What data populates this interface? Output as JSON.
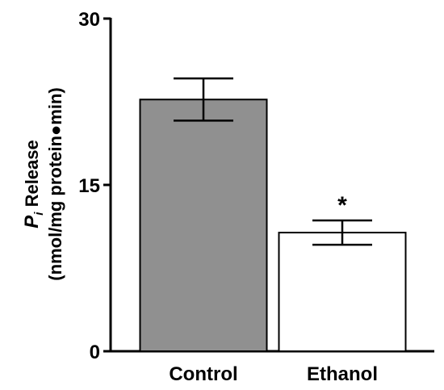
{
  "chart_data": {
    "type": "bar",
    "categories": [
      "Control",
      "Ethanol"
    ],
    "values": [
      22.7,
      10.7
    ],
    "error": [
      1.9,
      1.1
    ],
    "significance": [
      "",
      "*"
    ],
    "ylim": [
      0,
      30
    ],
    "yticks": [
      "0",
      "15",
      "30"
    ],
    "ylabel_main": "P",
    "ylabel_sub": "i",
    "ylabel_rest": " Release",
    "ylabel_units": "(nmol/mg protein●min)",
    "colors": {
      "control_fill": "#909090",
      "ethanol_fill": "#ffffff",
      "stroke": "#000000"
    }
  }
}
